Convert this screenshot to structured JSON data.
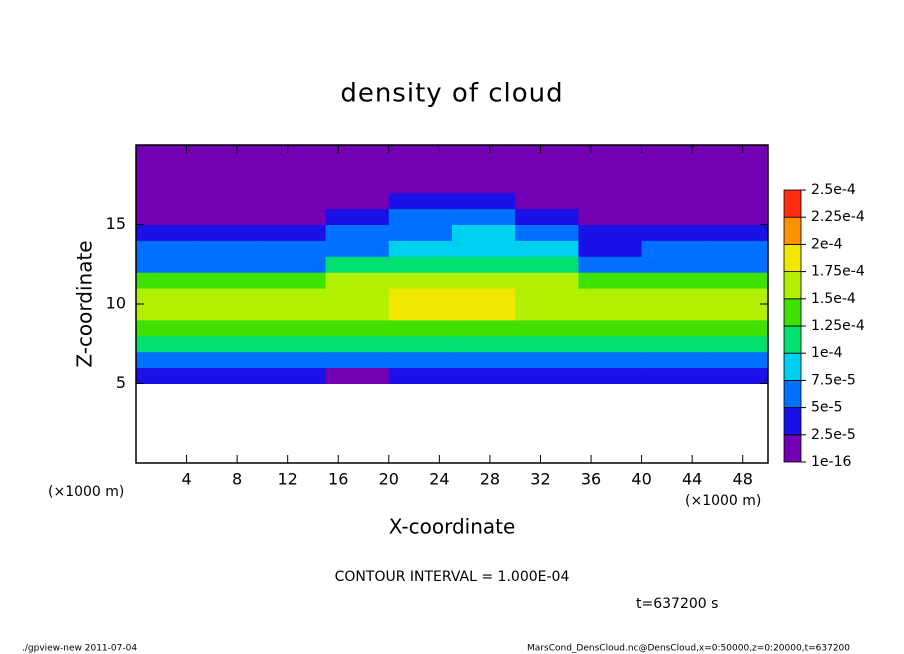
{
  "chart_data": {
    "type": "heatmap",
    "title": "density of cloud",
    "xlabel": "X-coordinate",
    "ylabel": "Z-coordinate",
    "x_unit_label_left": "(×1000 m)",
    "x_unit_label_right": "(×1000 m)",
    "contour_note": "CONTOUR INTERVAL = 1.000E-04",
    "time_note": "t=637200 s",
    "footer_left": "./gpview-new  2011-07-04",
    "footer_right": "MarsCond_DensCloud.nc@DensCloud,x=0:50000,z=0:20000,t=637200",
    "xlim": [
      0,
      50
    ],
    "ylim": [
      0,
      20
    ],
    "xticks": [
      4,
      8,
      12,
      16,
      20,
      24,
      28,
      32,
      36,
      40,
      44,
      48
    ],
    "yticks": [
      5,
      10,
      15
    ],
    "x_edges": [
      0,
      5,
      10,
      15,
      20,
      25,
      30,
      35,
      40,
      45,
      50
    ],
    "z_edges": [
      0,
      1,
      2,
      3,
      4,
      5,
      6,
      7,
      8,
      9,
      10,
      11,
      12,
      13,
      14,
      15,
      16,
      17,
      18,
      19,
      20
    ],
    "values": [
      [
        null,
        null,
        null,
        null,
        null,
        null,
        null,
        null,
        null,
        null
      ],
      [
        null,
        null,
        null,
        null,
        null,
        null,
        null,
        null,
        null,
        null
      ],
      [
        null,
        null,
        null,
        null,
        null,
        null,
        null,
        null,
        null,
        null
      ],
      [
        null,
        null,
        null,
        null,
        null,
        null,
        null,
        null,
        null,
        null
      ],
      [
        null,
        null,
        null,
        null,
        null,
        null,
        null,
        null,
        null,
        null
      ],
      [
        3e-05,
        3e-05,
        3e-05,
        2e-05,
        3e-05,
        3e-05,
        3e-05,
        3e-05,
        3e-05,
        3e-05
      ],
      [
        7e-05,
        7e-05,
        7e-05,
        6e-05,
        6e-05,
        7e-05,
        7e-05,
        7e-05,
        7e-05,
        7e-05
      ],
      [
        0.00011,
        0.00011,
        0.00011,
        0.00011,
        0.00011,
        0.00011,
        0.00011,
        0.00011,
        0.00011,
        0.00011
      ],
      [
        0.00014,
        0.00014,
        0.00014,
        0.00014,
        0.00014,
        0.00014,
        0.00014,
        0.00014,
        0.00014,
        0.00014
      ],
      [
        0.00016,
        0.00016,
        0.00016,
        0.00016,
        0.00018,
        0.00018,
        0.00016,
        0.00016,
        0.00016,
        0.00016
      ],
      [
        0.00016,
        0.00016,
        0.00016,
        0.00016,
        0.00019,
        0.00019,
        0.00016,
        0.00016,
        0.00016,
        0.00016
      ],
      [
        0.00013,
        0.00013,
        0.00013,
        0.00015,
        0.00015,
        0.00015,
        0.00015,
        0.00013,
        0.00013,
        0.00013
      ],
      [
        6e-05,
        6e-05,
        7e-05,
        0.0001,
        0.00011,
        0.00011,
        0.0001,
        6e-05,
        6e-05,
        6e-05
      ],
      [
        5e-05,
        5e-05,
        5e-05,
        7e-05,
        9e-05,
        9e-05,
        8e-05,
        4e-05,
        5e-05,
        5e-05
      ],
      [
        4e-05,
        4e-05,
        4e-05,
        5e-05,
        7e-05,
        8e-05,
        6e-05,
        3e-05,
        4e-05,
        4e-05
      ],
      [
        2e-05,
        2e-05,
        2e-05,
        3e-05,
        5e-05,
        6e-05,
        4e-05,
        2e-05,
        2e-05,
        2e-05
      ],
      [
        1e-05,
        1e-05,
        1e-05,
        1e-05,
        3e-05,
        4e-05,
        2e-05,
        1e-05,
        1e-05,
        1e-05
      ],
      [
        1e-06,
        1e-06,
        1e-06,
        1e-06,
        1e-05,
        1e-05,
        1e-06,
        1e-06,
        1e-06,
        1e-06
      ],
      [
        1e-07,
        1e-07,
        1e-07,
        1e-07,
        1e-07,
        1e-07,
        1e-07,
        1e-07,
        1e-07,
        1e-07
      ],
      [
        1e-07,
        1e-07,
        1e-07,
        1e-07,
        1e-07,
        1e-07,
        1e-07,
        1e-07,
        1e-07,
        1e-07
      ]
    ],
    "colorbar_levels": [
      {
        "value": 1e-16,
        "label": "1e-16"
      },
      {
        "value": 2.5e-05,
        "label": "2.5e-5"
      },
      {
        "value": 5e-05,
        "label": "5e-5"
      },
      {
        "value": 7.5e-05,
        "label": "7.5e-5"
      },
      {
        "value": 0.0001,
        "label": "1e-4"
      },
      {
        "value": 0.000125,
        "label": "1.25e-4"
      },
      {
        "value": 0.00015,
        "label": "1.5e-4"
      },
      {
        "value": 0.000175,
        "label": "1.75e-4"
      },
      {
        "value": 0.0002,
        "label": "2e-4"
      },
      {
        "value": 0.000225,
        "label": "2.25e-4"
      },
      {
        "value": 0.00025,
        "label": "2.5e-4"
      }
    ],
    "colors": [
      "#7400b4",
      "#1a10e8",
      "#0070ff",
      "#00d0f0",
      "#00e070",
      "#40e000",
      "#b0f000",
      "#f0e800",
      "#ff9000",
      "#ff2a10"
    ]
  }
}
